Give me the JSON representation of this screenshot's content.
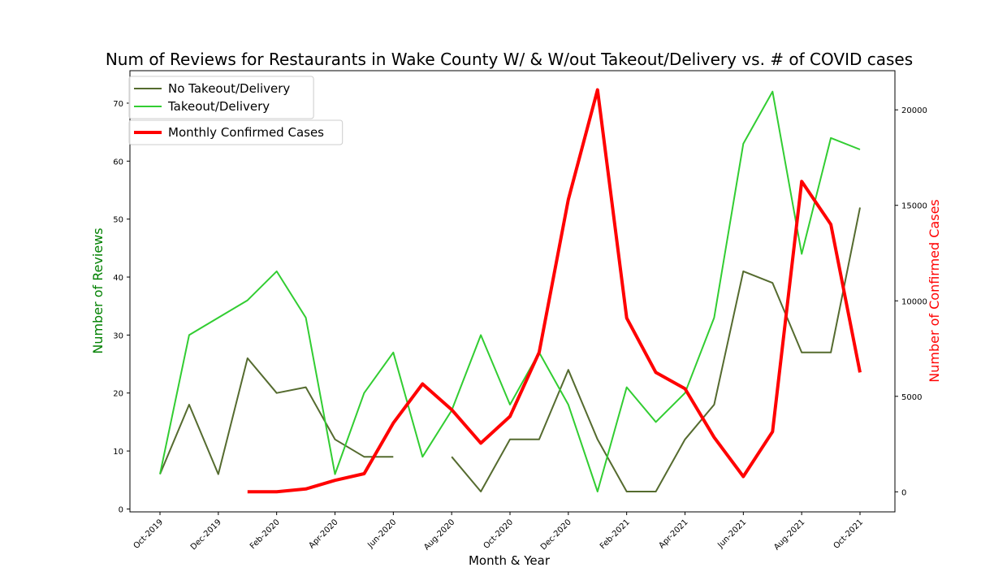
{
  "chart_data": {
    "type": "line",
    "title": "Num of Reviews for Restaurants in Wake County W/ & W/out Takeout/Delivery vs. # of COVID cases",
    "xlabel": "Month & Year",
    "ylabel_left": "Number of Reviews",
    "ylabel_right": "Number of Confirmed Cases",
    "ylabel_left_color": "#008000",
    "ylabel_right_color": "#ff0000",
    "months": [
      "Oct-2019",
      "Nov-2019",
      "Dec-2019",
      "Jan-2020",
      "Feb-2020",
      "Mar-2020",
      "Apr-2020",
      "May-2020",
      "Jun-2020",
      "Jul-2020",
      "Aug-2020",
      "Sep-2020",
      "Oct-2020",
      "Nov-2020",
      "Dec-2020",
      "Jan-2021",
      "Feb-2021",
      "Mar-2021",
      "Apr-2021",
      "May-2021",
      "Jun-2021",
      "Jul-2021",
      "Aug-2021",
      "Sep-2021",
      "Oct-2021"
    ],
    "tick_labels": [
      "Oct-2019",
      "Dec-2019",
      "Feb-2020",
      "Apr-2020",
      "Jun-2020",
      "Aug-2020",
      "Oct-2020",
      "Dec-2020",
      "Feb-2021",
      "Apr-2021",
      "Jun-2021",
      "Aug-2021",
      "Oct-2021"
    ],
    "y_left_ticks": [
      0,
      10,
      20,
      30,
      40,
      50,
      60,
      70
    ],
    "y_right_ticks": [
      0,
      5000,
      10000,
      15000,
      20000
    ],
    "ylim_left": [
      -0.5,
      75.6
    ],
    "ylim_right": [
      -1050,
      22050
    ],
    "grid": false,
    "series": [
      {
        "name": "No Takeout/Delivery",
        "axis": "left",
        "color": "#556b2f",
        "values": [
          6,
          18,
          6,
          26,
          20,
          21,
          12,
          9,
          9,
          null,
          9,
          3,
          12,
          12,
          24,
          12,
          3,
          3,
          12,
          18,
          41,
          39,
          27,
          27,
          52
        ]
      },
      {
        "name": "Takeout/Delivery",
        "axis": "left",
        "color": "#32cd32",
        "values": [
          6,
          30,
          33,
          36,
          41,
          33,
          6,
          20,
          27,
          9,
          17,
          30,
          18,
          27,
          18,
          3,
          21,
          15,
          20,
          33,
          63,
          72,
          44,
          64,
          62
        ]
      },
      {
        "name": "Monthly Confirmed Cases",
        "axis": "right",
        "color": "#ff0000",
        "values": [
          null,
          null,
          null,
          0,
          0,
          150,
          600,
          950,
          3600,
          5650,
          4300,
          2550,
          3950,
          7300,
          15300,
          21050,
          9100,
          6250,
          5400,
          2850,
          800,
          3150,
          16250,
          14000,
          6250
        ]
      }
    ],
    "legend_upper": [
      "No Takeout/Delivery",
      "Takeout/Delivery"
    ],
    "legend_lower": [
      "Monthly Confirmed Cases"
    ],
    "legend_placement": "top-left"
  }
}
